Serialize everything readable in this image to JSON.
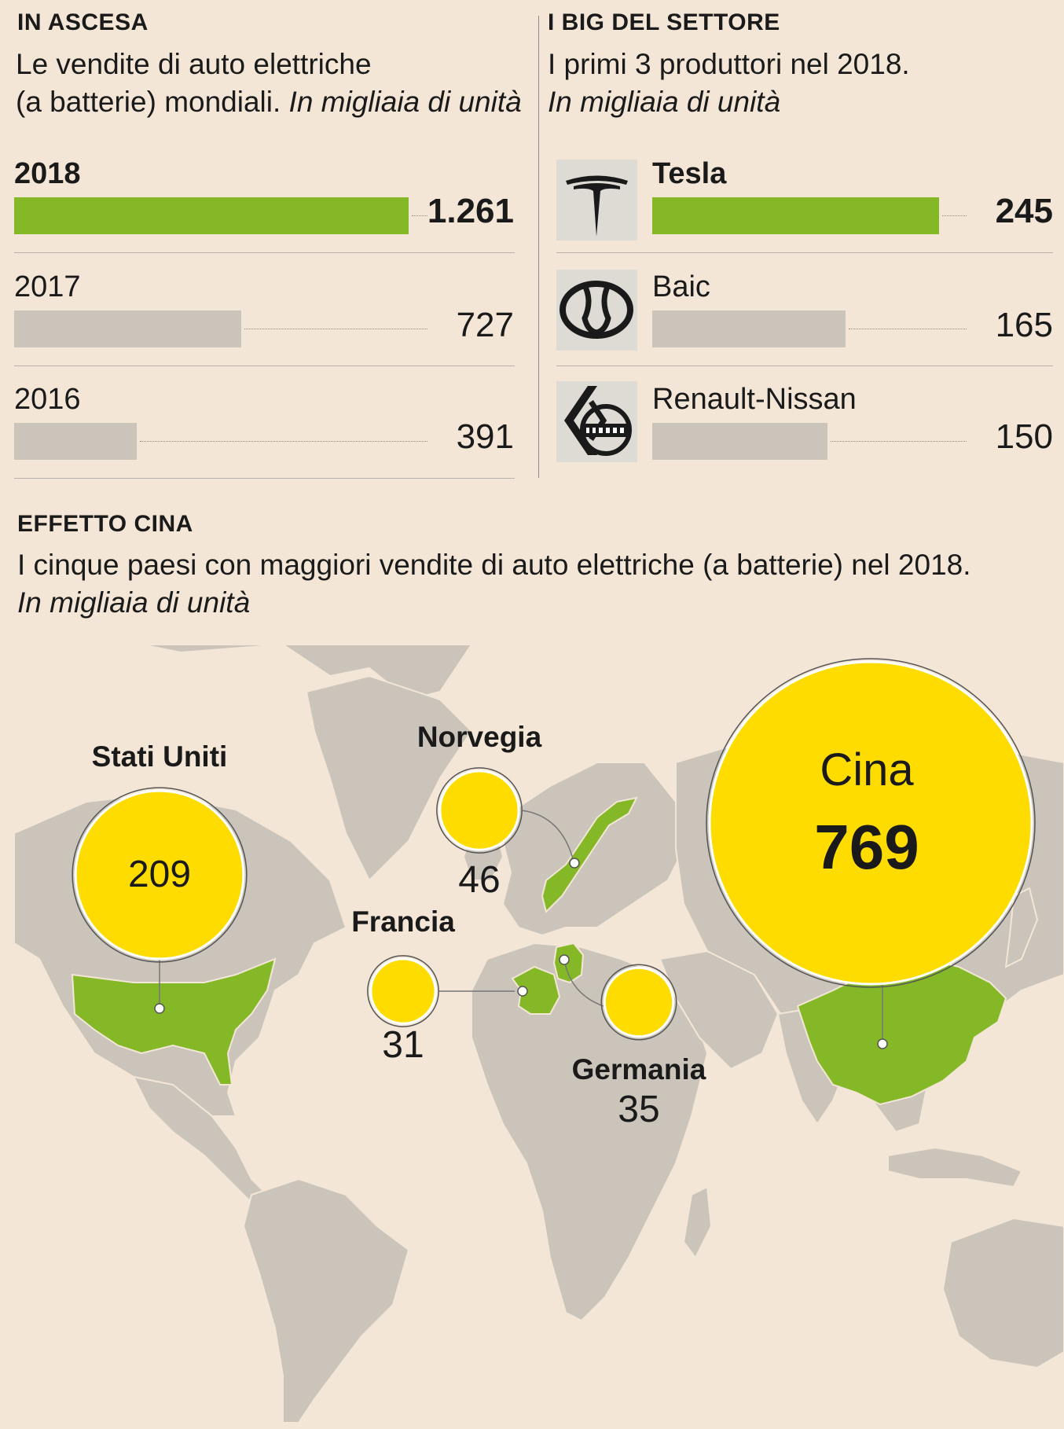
{
  "left_panel": {
    "kicker": "IN ASCESA",
    "subtitle_line1": "Le vendite di auto elettriche",
    "subtitle_line2": "(a batterie) mondiali.",
    "unit": "In migliaia di unità"
  },
  "right_panel": {
    "kicker": "I BIG DEL SETTORE",
    "subtitle": "I primi 3 produttori nel 2018.",
    "unit": "In migliaia di unità"
  },
  "map_panel": {
    "kicker": "EFFETTO CINA",
    "subtitle": "I cinque paesi con maggiori vendite di auto elettriche (a batterie) nel 2018.",
    "unit": "In migliaia di unità"
  },
  "colors": {
    "background": "#f3e6d6",
    "highlight_bar": "#84b826",
    "muted_bar": "#cbc4ba",
    "bubble": "#ffdc00",
    "land": "#cbc4ba",
    "highlight_land": "#84b826"
  },
  "logos": [
    "tesla-logo-icon",
    "baic-logo-icon",
    "renault-nissan-logo-icon"
  ],
  "chart_data": [
    {
      "type": "bar",
      "orientation": "horizontal",
      "categories": [
        "2018",
        "2017",
        "2016"
      ],
      "values": [
        1261,
        727,
        391
      ],
      "value_labels": [
        "1.261",
        "727",
        "391"
      ],
      "highlight": "2018",
      "xlim": [
        0,
        1261
      ]
    },
    {
      "type": "bar",
      "orientation": "horizontal",
      "categories": [
        "Tesla",
        "Baic",
        "Renault-Nissan"
      ],
      "values": [
        245,
        165,
        150
      ],
      "value_labels": [
        "245",
        "165",
        "150"
      ],
      "highlight": "Tesla",
      "xlim": [
        0,
        245
      ]
    },
    {
      "type": "bubble-map",
      "series": [
        {
          "name": "Stati Uniti",
          "value": 209,
          "label": "209"
        },
        {
          "name": "Norvegia",
          "value": 46,
          "label": "46"
        },
        {
          "name": "Francia",
          "value": 31,
          "label": "31"
        },
        {
          "name": "Germania",
          "value": 35,
          "label": "35"
        },
        {
          "name": "Cina",
          "value": 769,
          "label": "769"
        }
      ]
    }
  ]
}
